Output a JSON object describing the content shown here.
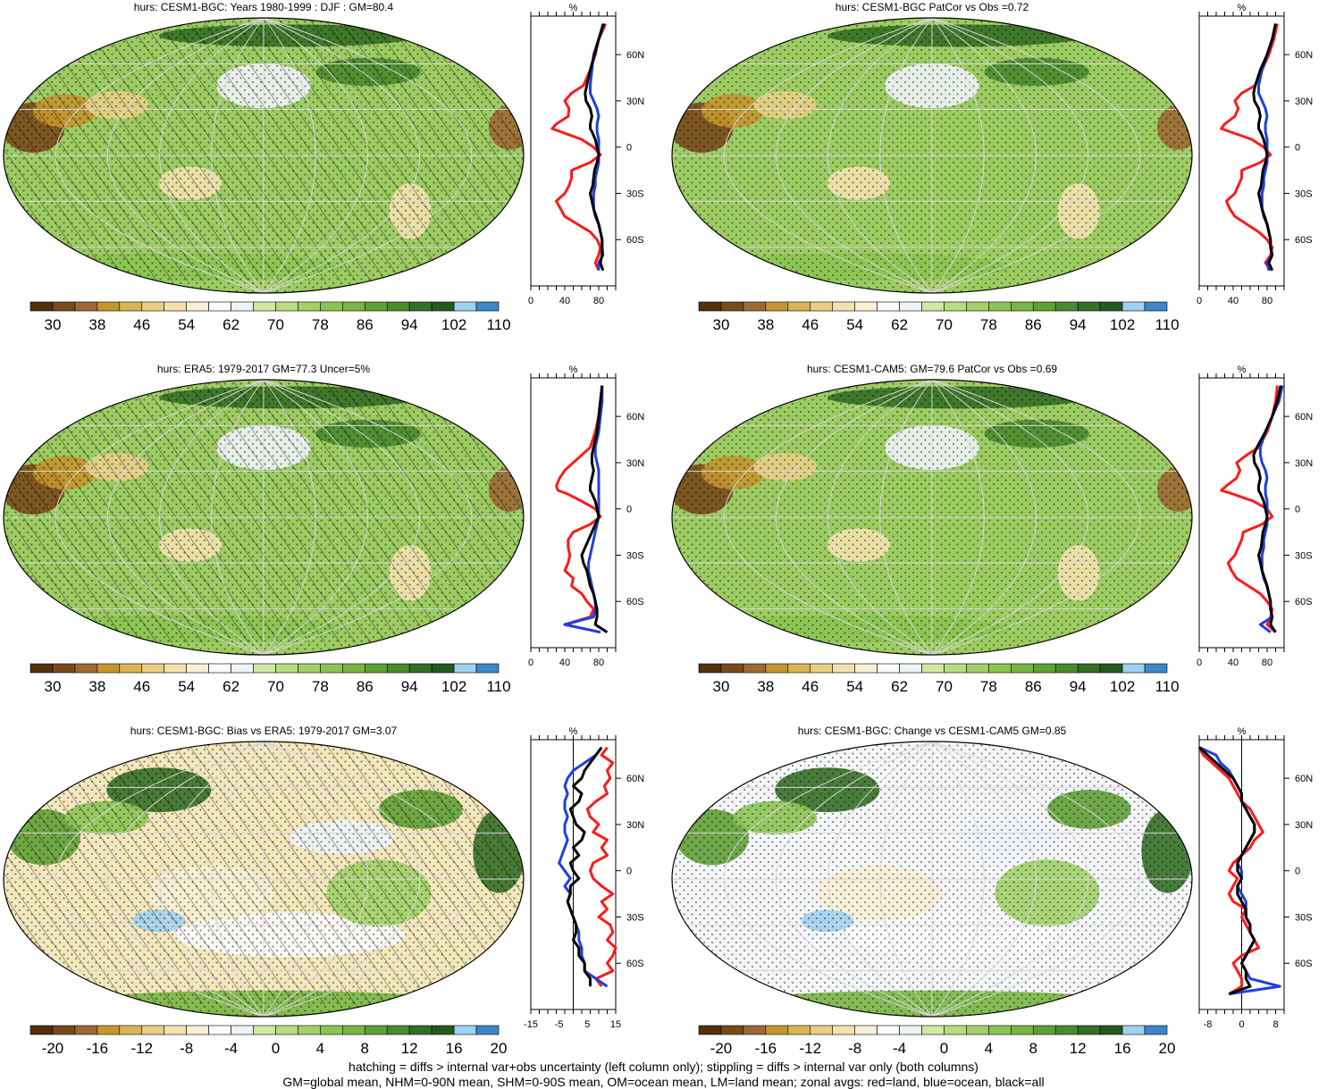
{
  "palettes": {
    "absolute": [
      "#54300c",
      "#7a4a1c",
      "#9c6a34",
      "#c4962f",
      "#d8b456",
      "#e8cf84",
      "#f3e2ad",
      "#f8f0d4",
      "#fbfbfb",
      "#eef3f7",
      "#cfe8a6",
      "#b7dc82",
      "#a1d068",
      "#8cc453",
      "#78b543",
      "#5fa036",
      "#4a8a2e",
      "#356f26",
      "#255a1f",
      "#9fd1f0",
      "#3d86c9"
    ],
    "diff": [
      "#54300c",
      "#7a4a1c",
      "#9c6a34",
      "#c4962f",
      "#d8b456",
      "#e8cf84",
      "#f3e2ad",
      "#f8f0d4",
      "#fbfbfb",
      "#eef3f7",
      "#cfe8a6",
      "#b7dc82",
      "#a1d068",
      "#8cc453",
      "#78b543",
      "#5fa036",
      "#4a8a2e",
      "#356f26",
      "#255a1f",
      "#9fd1f0",
      "#3d86c9"
    ]
  },
  "colors": {
    "land": "#ff1a1a",
    "ocean": "#1f3fe0",
    "all": "#000000",
    "grid": "#d9d9d9"
  },
  "panels": [
    {
      "id": "bgc-clim",
      "title": "hurs: CESM1-BGC: Years 1980-1999 : DJF : GM=80.4",
      "scale": "absolute",
      "bg": "#9ccc62",
      "hatched": true,
      "cbar_labels": [
        "30",
        "38",
        "46",
        "54",
        "62",
        "70",
        "78",
        "86",
        "94",
        "102",
        "110"
      ],
      "profile": {
        "unit": "%",
        "xticks": [
          "0",
          "40",
          "80"
        ],
        "xtick_vals": [
          0,
          40,
          80
        ],
        "xrange": [
          0,
          100
        ],
        "zero_line": false,
        "lat_labels": [
          "60N",
          "30N",
          "0",
          "30S",
          "60S"
        ],
        "lat_vals": [
          60,
          30,
          0,
          -30,
          -60
        ],
        "lat": [
          80,
          70,
          60,
          50,
          40,
          35,
          30,
          25,
          20,
          15,
          12,
          10,
          5,
          0,
          -5,
          -10,
          -15,
          -20,
          -25,
          -30,
          -35,
          -40,
          -45,
          -50,
          -55,
          -60,
          -65,
          -70,
          -75,
          -80
        ],
        "land": [
          88,
          80,
          76,
          70,
          62,
          48,
          40,
          45,
          44,
          30,
          25,
          35,
          60,
          74,
          82,
          70,
          48,
          48,
          45,
          40,
          30,
          35,
          40,
          55,
          70,
          78,
          82,
          80,
          76,
          80
        ],
        "ocean": [
          85,
          80,
          74,
          72,
          70,
          70,
          74,
          78,
          80,
          78,
          78,
          78,
          80,
          80,
          80,
          80,
          78,
          76,
          76,
          74,
          74,
          74,
          76,
          80,
          82,
          84,
          84,
          85,
          80,
          80
        ],
        "all": [
          86,
          80,
          75,
          70,
          66,
          64,
          65,
          70,
          72,
          70,
          70,
          72,
          76,
          78,
          80,
          78,
          75,
          74,
          73,
          70,
          72,
          74,
          77,
          80,
          82,
          84,
          84,
          84,
          82,
          85
        ]
      }
    },
    {
      "id": "bgc-patcor",
      "title": "hurs: CESM1-BGC PatCor vs Obs =0.72",
      "scale": "absolute",
      "bg": "#9ccc62",
      "hatched": false,
      "cbar_labels": [
        "30",
        "38",
        "46",
        "54",
        "62",
        "70",
        "78",
        "86",
        "94",
        "102",
        "110"
      ],
      "profile": {
        "unit": "%",
        "xticks": [
          "0",
          "40",
          "80"
        ],
        "xtick_vals": [
          0,
          40,
          80
        ],
        "xrange": [
          0,
          100
        ],
        "zero_line": false,
        "lat_labels": [
          "60N",
          "30N",
          "0",
          "30S",
          "60S"
        ],
        "lat_vals": [
          60,
          30,
          0,
          -30,
          -60
        ],
        "lat": [
          80,
          70,
          60,
          50,
          40,
          35,
          30,
          25,
          20,
          15,
          12,
          10,
          5,
          0,
          -5,
          -10,
          -15,
          -20,
          -25,
          -30,
          -35,
          -40,
          -45,
          -50,
          -55,
          -60,
          -65,
          -70,
          -75,
          -80
        ],
        "land": [
          92,
          88,
          82,
          74,
          66,
          50,
          42,
          46,
          42,
          30,
          26,
          36,
          62,
          76,
          84,
          72,
          50,
          50,
          46,
          42,
          32,
          36,
          42,
          56,
          70,
          80,
          86,
          84,
          78,
          84
        ],
        "ocean": [
          90,
          86,
          80,
          74,
          70,
          70,
          74,
          78,
          80,
          78,
          78,
          78,
          80,
          80,
          80,
          80,
          78,
          76,
          76,
          74,
          74,
          74,
          76,
          80,
          82,
          84,
          84,
          86,
          80,
          82
        ],
        "all": [
          90,
          86,
          80,
          72,
          66,
          64,
          65,
          70,
          72,
          70,
          70,
          72,
          76,
          78,
          80,
          78,
          75,
          74,
          73,
          70,
          72,
          74,
          77,
          80,
          82,
          84,
          84,
          86,
          82,
          86
        ]
      }
    },
    {
      "id": "era5",
      "title": "hurs: ERA5: 1979-2017 GM=77.3 Uncer=5%",
      "scale": "absolute",
      "bg": "#9ccc62",
      "hatched": true,
      "cbar_labels": [
        "30",
        "38",
        "46",
        "54",
        "62",
        "70",
        "78",
        "86",
        "94",
        "102",
        "110"
      ],
      "profile": {
        "unit": "%",
        "xticks": [
          "0",
          "40",
          "80"
        ],
        "xtick_vals": [
          0,
          40,
          80
        ],
        "xrange": [
          0,
          100
        ],
        "zero_line": false,
        "lat_labels": [
          "60N",
          "30N",
          "0",
          "30S",
          "60S"
        ],
        "lat_vals": [
          60,
          30,
          0,
          -30,
          -60
        ],
        "lat": [
          80,
          70,
          60,
          50,
          40,
          35,
          30,
          25,
          20,
          15,
          12,
          10,
          5,
          0,
          -5,
          -10,
          -15,
          -20,
          -25,
          -30,
          -35,
          -40,
          -45,
          -50,
          -55,
          -60,
          -65,
          -70,
          -75,
          -80
        ],
        "land": [
          84,
          82,
          80,
          76,
          70,
          60,
          50,
          40,
          34,
          30,
          32,
          42,
          60,
          76,
          82,
          70,
          50,
          44,
          44,
          46,
          44,
          40,
          50,
          48,
          60,
          66,
          74,
          70,
          40,
          82
        ],
        "ocean": [
          84,
          84,
          82,
          80,
          76,
          76,
          78,
          80,
          80,
          80,
          80,
          80,
          80,
          80,
          80,
          78,
          76,
          74,
          72,
          70,
          68,
          68,
          70,
          72,
          74,
          76,
          76,
          74,
          40,
          82
        ],
        "all": [
          84,
          82,
          80,
          78,
          74,
          72,
          72,
          74,
          72,
          70,
          70,
          72,
          76,
          78,
          80,
          76,
          72,
          68,
          64,
          60,
          62,
          66,
          68,
          70,
          74,
          76,
          78,
          78,
          76,
          90
        ]
      }
    },
    {
      "id": "cam5",
      "title": "hurs: CESM1-CAM5: GM=79.6 PatCor vs Obs =0.69",
      "scale": "absolute",
      "bg": "#9ccc62",
      "hatched": false,
      "cbar_labels": [
        "30",
        "38",
        "46",
        "54",
        "62",
        "70",
        "78",
        "86",
        "94",
        "102",
        "110"
      ],
      "profile": {
        "unit": "%",
        "xticks": [
          "0",
          "40",
          "80"
        ],
        "xtick_vals": [
          0,
          40,
          80
        ],
        "xrange": [
          0,
          100
        ],
        "zero_line": false,
        "lat_labels": [
          "60N",
          "30N",
          "0",
          "30S",
          "60S"
        ],
        "lat_vals": [
          60,
          30,
          0,
          -30,
          -60
        ],
        "lat": [
          80,
          70,
          60,
          50,
          40,
          35,
          30,
          25,
          20,
          15,
          12,
          10,
          5,
          0,
          -5,
          -10,
          -15,
          -20,
          -25,
          -30,
          -35,
          -40,
          -45,
          -50,
          -55,
          -60,
          -65,
          -70,
          -75,
          -80
        ],
        "land": [
          92,
          90,
          86,
          80,
          70,
          56,
          44,
          48,
          44,
          32,
          26,
          38,
          64,
          80,
          86,
          74,
          52,
          50,
          46,
          42,
          34,
          38,
          44,
          58,
          72,
          80,
          86,
          84,
          80,
          90
        ],
        "ocean": [
          98,
          94,
          86,
          78,
          72,
          72,
          74,
          78,
          80,
          78,
          78,
          78,
          80,
          80,
          80,
          80,
          78,
          76,
          76,
          74,
          74,
          74,
          76,
          80,
          82,
          84,
          84,
          86,
          72,
          84
        ],
        "all": [
          96,
          92,
          86,
          78,
          68,
          64,
          65,
          70,
          72,
          70,
          70,
          72,
          76,
          78,
          80,
          78,
          75,
          74,
          73,
          70,
          72,
          74,
          77,
          80,
          82,
          84,
          84,
          86,
          84,
          90
        ]
      }
    },
    {
      "id": "bias",
      "title": "hurs: CESM1-BGC: Bias vs ERA5: 1979-2017 GM=3.07",
      "scale": "diff",
      "bg": "#f3e7bc",
      "hatched": true,
      "cbar_labels": [
        "-20",
        "-16",
        "-12",
        "-8",
        "-4",
        "0",
        "4",
        "8",
        "12",
        "16",
        "20"
      ],
      "profile": {
        "unit": "%",
        "xticks": [
          "-15",
          "-5",
          "5",
          "15"
        ],
        "xtick_vals": [
          -15,
          -5,
          5,
          15
        ],
        "xrange": [
          -15,
          15
        ],
        "zero_line": true,
        "lat_labels": [
          "60N",
          "30N",
          "0",
          "30S",
          "60S"
        ],
        "lat_vals": [
          60,
          30,
          0,
          -30,
          -60
        ],
        "lat": [
          80,
          75,
          70,
          65,
          60,
          55,
          50,
          45,
          40,
          35,
          30,
          25,
          20,
          15,
          10,
          5,
          0,
          -5,
          -10,
          -15,
          -20,
          -25,
          -30,
          -35,
          -40,
          -45,
          -50,
          -55,
          -60,
          -65,
          -70,
          -75
        ],
        "land": [
          12,
          10,
          14,
          12,
          13,
          11,
          12,
          8,
          5,
          6,
          9,
          7,
          12,
          10,
          12,
          7,
          6,
          7,
          10,
          14,
          10,
          12,
          9,
          13,
          14,
          12,
          15,
          14,
          12,
          14,
          8,
          10
        ],
        "ocean": [
          10,
          8,
          4,
          0,
          -2,
          -3,
          -2,
          -3,
          -3,
          -2,
          -3,
          -3,
          -2,
          -3,
          -4,
          -5,
          -3,
          -1,
          -3,
          -1,
          -2,
          -1,
          0,
          1,
          2,
          2,
          3,
          3,
          4,
          4,
          8,
          12
        ],
        "all": [
          10,
          8,
          6,
          4,
          3,
          0,
          3,
          2,
          -1,
          0,
          1,
          4,
          3,
          0,
          2,
          -1,
          0,
          2,
          -1,
          -1,
          -2,
          -1,
          0,
          1,
          1,
          0,
          2,
          2,
          4,
          4,
          6,
          6
        ]
      }
    },
    {
      "id": "change",
      "title": "hurs: CESM1-BGC: Change vs CESM1-CAM5 GM=0.85",
      "scale": "diff",
      "bg": "#f4f6f8",
      "hatched": false,
      "cbar_labels": [
        "-20",
        "-16",
        "-12",
        "-8",
        "-4",
        "0",
        "4",
        "8",
        "12",
        "16",
        "20"
      ],
      "profile": {
        "unit": "%",
        "xticks": [
          "-8",
          "0",
          "8"
        ],
        "xtick_vals": [
          -8,
          0,
          8
        ],
        "xrange": [
          -10,
          10
        ],
        "zero_line": true,
        "lat_labels": [
          "60N",
          "30N",
          "0",
          "30S",
          "60S"
        ],
        "lat_vals": [
          60,
          30,
          0,
          -30,
          -60
        ],
        "lat": [
          80,
          75,
          70,
          65,
          60,
          55,
          50,
          45,
          40,
          35,
          30,
          25,
          20,
          15,
          10,
          5,
          0,
          -5,
          -10,
          -15,
          -20,
          -25,
          -30,
          -35,
          -40,
          -45,
          -50,
          -55,
          -60,
          -65,
          -70,
          -75,
          -80
        ],
        "land": [
          -10,
          -9,
          -7,
          -5,
          -3,
          -2,
          -1,
          0,
          2,
          3,
          4,
          5,
          3,
          2,
          0,
          -2,
          -3,
          -1,
          -2,
          -3,
          -2,
          1,
          0,
          1,
          2,
          3,
          4,
          0,
          -2,
          -1,
          0,
          0,
          -3
        ],
        "ocean": [
          -10,
          -6,
          -5,
          -3,
          -2,
          -1,
          0,
          0,
          1,
          2,
          3,
          3,
          2,
          1,
          0,
          -1,
          0,
          0,
          -1,
          0,
          1,
          1,
          1,
          2,
          2,
          3,
          2,
          1,
          0,
          1,
          2,
          9,
          -3
        ],
        "all": [
          -10,
          -8,
          -6,
          -4,
          -2,
          -1,
          0,
          0,
          1,
          2,
          3,
          3,
          2,
          1,
          0,
          -1,
          -1,
          0,
          -1,
          -1,
          0,
          1,
          1,
          2,
          2,
          3,
          2,
          1,
          0,
          1,
          1,
          2,
          -3
        ]
      }
    }
  ],
  "footer": {
    "line1": "hatching = diffs > internal var+obs uncertainty (left column only); stippling = diffs > internal var only (both columns)",
    "line2": "GM=global mean, NHM=0-90N mean, SHM=0-90S mean, OM=ocean mean, LM=land mean; zonal avgs: red=land, blue=ocean, black=all"
  }
}
